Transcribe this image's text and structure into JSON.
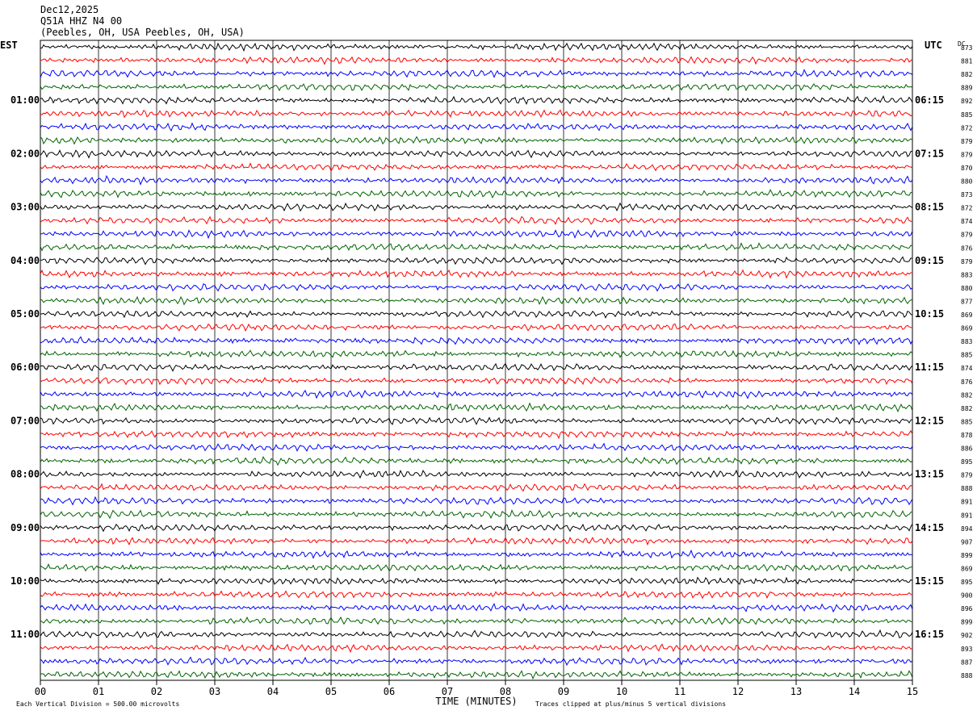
{
  "header": {
    "date": "Dec12,2025",
    "station": "Q51A HHZ N4 00",
    "location": "(Peebles, OH, USA Peebles, OH, USA)"
  },
  "chart_data": {
    "type": "line",
    "title": "Q51A HHZ N4 00",
    "left_axis_label": "EST",
    "right_axis_label": "UTC",
    "dc_label": "DC",
    "xlabel": "TIME (MINUTES)",
    "xlim": [
      0,
      15
    ],
    "x_ticks": [
      "00",
      "01",
      "02",
      "03",
      "04",
      "05",
      "06",
      "07",
      "08",
      "09",
      "10",
      "11",
      "12",
      "13",
      "14",
      "15"
    ],
    "left_time_labels": [
      "01:00",
      "02:00",
      "03:00",
      "04:00",
      "05:00",
      "06:00",
      "07:00",
      "08:00",
      "09:00",
      "10:00",
      "11:00"
    ],
    "right_time_labels": [
      "06:15",
      "07:15",
      "08:15",
      "09:15",
      "10:15",
      "11:15",
      "12:15",
      "13:15",
      "14:15",
      "15:15",
      "16:15"
    ],
    "trace_colors": [
      "#000000",
      "#ff0000",
      "#0000ff",
      "#006400"
    ],
    "dc_offsets": [
      "873",
      "881",
      "882",
      "889",
      "892",
      "885",
      "872",
      "879",
      "879",
      "870",
      "880",
      "873",
      "872",
      "874",
      "879",
      "876",
      "879",
      "883",
      "880",
      "877",
      "869",
      "869",
      "883",
      "885",
      "874",
      "876",
      "882",
      "882",
      "885",
      "878",
      "886",
      "895",
      "879",
      "888",
      "891",
      "891",
      "894",
      "907",
      "899",
      "869",
      "895",
      "900",
      "896",
      "899",
      "902",
      "893",
      "887",
      "888"
    ],
    "scale_note": "Each Vertical Division =  500.00 microvolts",
    "clip_note": "Traces clipped at plus/minus 5 vertical divisions",
    "grid": true
  }
}
